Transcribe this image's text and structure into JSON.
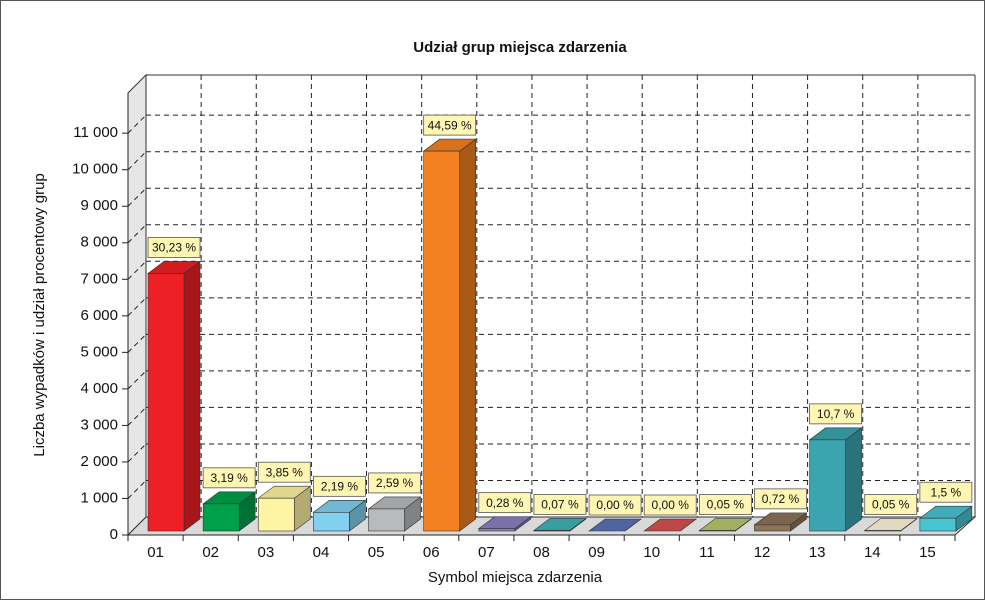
{
  "chart_data": {
    "type": "bar3d",
    "title": "Udział grup miejsca zdarzenia",
    "x_label": "Symbol miejsca zdarzenia",
    "y_label": "Liczba wypadków i udział procentowy grup",
    "categories": [
      "01",
      "02",
      "03",
      "04",
      "05",
      "06",
      "07",
      "08",
      "09",
      "10",
      "11",
      "12",
      "13",
      "14",
      "15"
    ],
    "values": [
      7050,
      744,
      898,
      511,
      604,
      10400,
      65,
      16,
      0,
      0,
      12,
      168,
      2495,
      12,
      350
    ],
    "percentages": [
      30.23,
      3.19,
      3.85,
      2.19,
      2.59,
      44.59,
      0.28,
      0.07,
      0.0,
      0.0,
      0.05,
      0.72,
      10.7,
      0.05,
      1.5
    ],
    "percentage_labels": [
      "30,23 %",
      "3,19 %",
      "3,85 %",
      "2,19 %",
      "2,59 %",
      "44,59 %",
      "0,28 %",
      "0,07 %",
      "0,00 %",
      "0,00 %",
      "0,05 %",
      "0,72 %",
      "10,7 %",
      "0,05 %",
      "1,5 %"
    ],
    "colors": [
      "#ee2024",
      "#00a04b",
      "#fff4a3",
      "#82d0f0",
      "#b8babd",
      "#f38121",
      "#8a80c0",
      "#40b4b6",
      "#5a72b9",
      "#d65252",
      "#b7c76c",
      "#8c7457",
      "#3ba4ae",
      "#fff6da",
      "#4ac4d1"
    ],
    "ylim": [
      0,
      12100
    ],
    "yticks": [
      0,
      {
        "value": 1000,
        "label": "1 000"
      },
      {
        "value": 2000,
        "label": "2 000"
      },
      {
        "value": 3000,
        "label": "3 000"
      },
      {
        "value": 4000,
        "label": "4 000"
      },
      {
        "value": 5000,
        "label": "5 000"
      },
      {
        "value": 6000,
        "label": "6 000"
      },
      {
        "value": 7000,
        "label": "7 000"
      },
      {
        "value": 8000,
        "label": "8 000"
      },
      {
        "value": 9000,
        "label": "9 000"
      },
      {
        "value": 10000,
        "label": "10 000"
      },
      {
        "value": 11000,
        "label": "11 000"
      }
    ],
    "grid": true
  }
}
